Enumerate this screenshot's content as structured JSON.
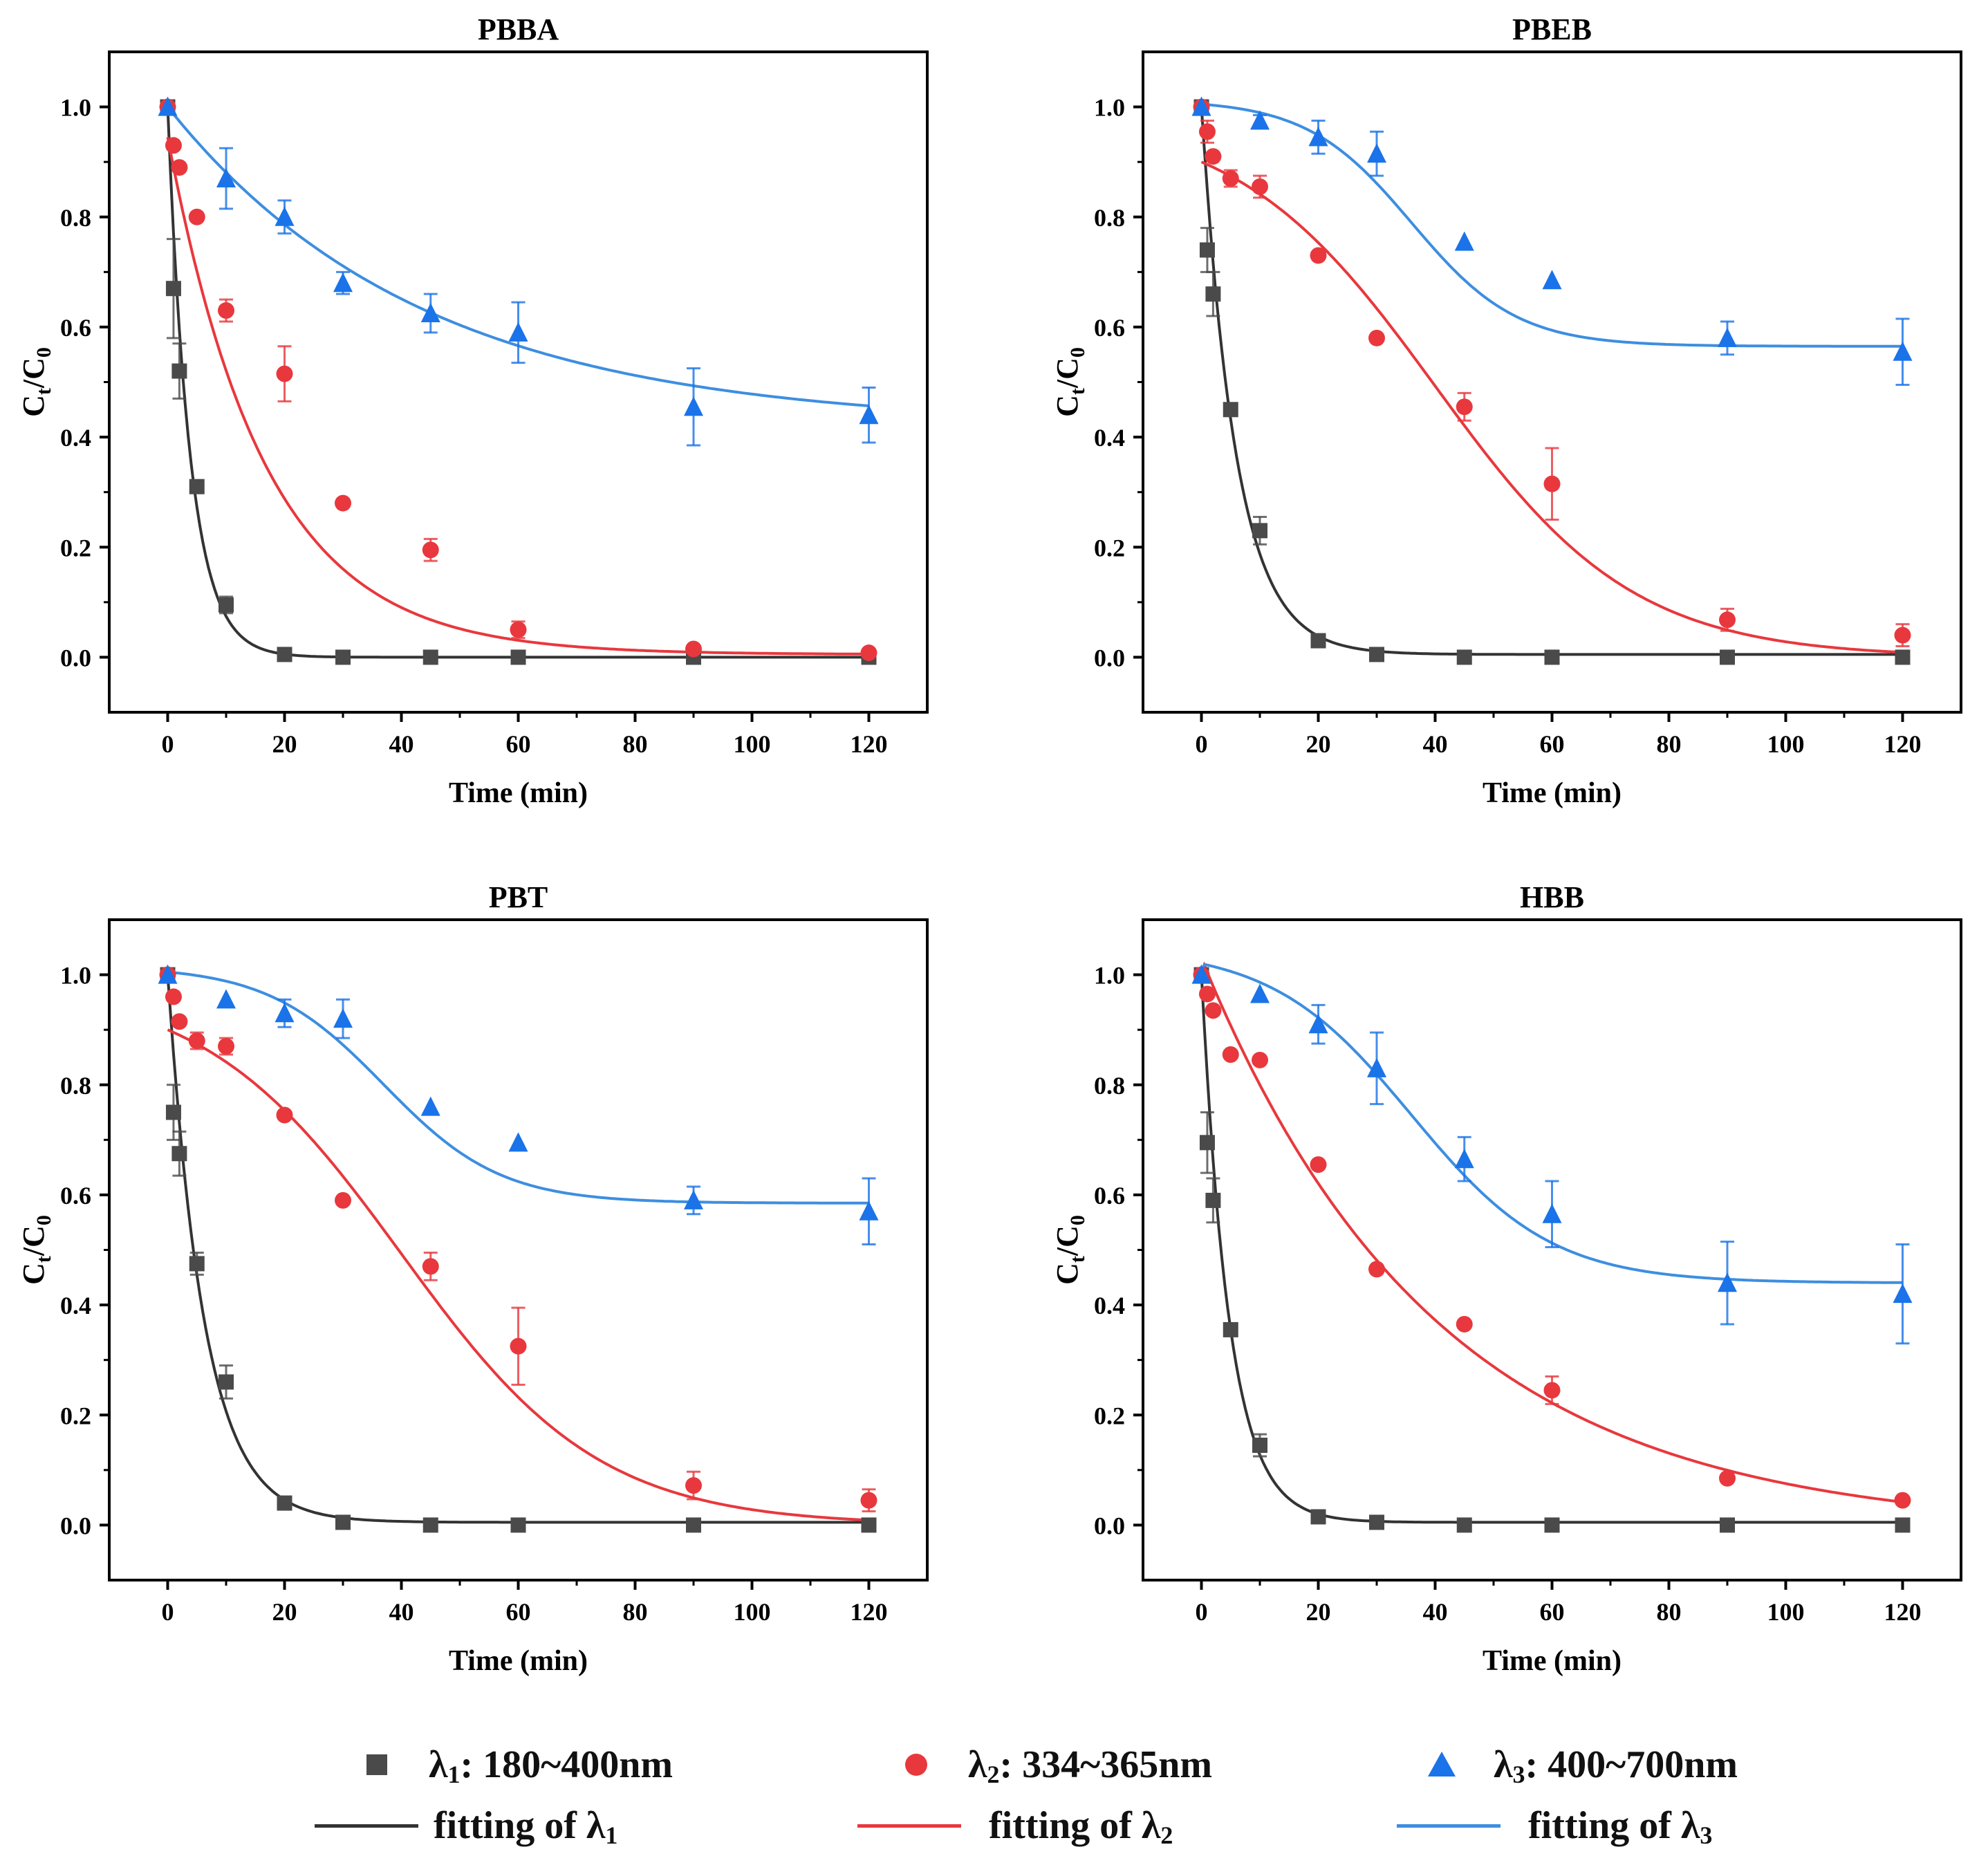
{
  "chart_data": [
    {
      "type": "scatter",
      "title": "PBBA",
      "xlabel": "Time (min)",
      "ylabel": "Ct/C0",
      "xlim": [
        -10,
        130
      ],
      "ylim": [
        -0.1,
        1.1
      ],
      "xticks": [
        "0",
        "20",
        "40",
        "60",
        "80",
        "100",
        "120"
      ],
      "yticks": [
        "0.0",
        "0.2",
        "0.4",
        "0.6",
        "0.8",
        "1.0"
      ],
      "x": [
        0,
        1,
        2,
        5,
        10,
        20,
        30,
        45,
        60,
        90,
        120
      ],
      "series": [
        {
          "name": "λ1: 180~400nm",
          "values": [
            1.0,
            0.67,
            0.52,
            0.31,
            0.095,
            0.005,
            0.0,
            0.0,
            0.0,
            0.0,
            0.0
          ],
          "errors": [
            0,
            0.09,
            0.05,
            0,
            0.015,
            0,
            0,
            0,
            0,
            0,
            0
          ]
        },
        {
          "name": "λ2: 334~365nm",
          "values": [
            1.0,
            0.93,
            0.89,
            0.8,
            0.63,
            0.515,
            0.28,
            0.195,
            0.05,
            0.015,
            0.008
          ],
          "errors": [
            0,
            0,
            0,
            0,
            0.02,
            0.05,
            0,
            0.02,
            0.015,
            0,
            0
          ]
        },
        {
          "name": "λ3: 400~700nm",
          "values": [
            1.0,
            null,
            null,
            null,
            0.87,
            0.8,
            0.68,
            0.625,
            0.59,
            0.455,
            0.44
          ],
          "errors": [
            0,
            0,
            0,
            0,
            0.055,
            0.03,
            0.02,
            0.035,
            0.055,
            0.07,
            0.05
          ]
        }
      ],
      "fits": [
        {
          "name": "fitting of λ1",
          "model": "exp",
          "a": 1.0,
          "k": 0.26,
          "c": 0.0
        },
        {
          "name": "fitting of λ2",
          "model": "exp",
          "a": 0.94,
          "k": 0.06,
          "c": 0.005
        },
        {
          "name": "fitting of λ3",
          "model": "exp",
          "a": 0.58,
          "k": 0.023,
          "c": 0.42
        }
      ]
    },
    {
      "type": "scatter",
      "title": "PBEB",
      "xlabel": "Time (min)",
      "ylabel": "Ct/C0",
      "xlim": [
        -10,
        130
      ],
      "ylim": [
        -0.1,
        1.1
      ],
      "xticks": [
        "0",
        "20",
        "40",
        "60",
        "80",
        "100",
        "120"
      ],
      "yticks": [
        "0.0",
        "0.2",
        "0.4",
        "0.6",
        "0.8",
        "1.0"
      ],
      "x": [
        0,
        1,
        2,
        5,
        10,
        20,
        30,
        45,
        60,
        90,
        120
      ],
      "series": [
        {
          "name": "λ1: 180~400nm",
          "values": [
            1.0,
            0.74,
            0.66,
            0.45,
            0.23,
            0.03,
            0.005,
            0.0,
            0.0,
            0.0,
            0.0
          ],
          "errors": [
            0,
            0.04,
            0.04,
            0,
            0.025,
            0,
            0,
            0,
            0,
            0,
            0
          ]
        },
        {
          "name": "λ2: 334~365nm",
          "values": [
            1.0,
            0.955,
            0.91,
            0.87,
            0.855,
            0.73,
            0.58,
            0.455,
            0.315,
            0.068,
            0.04
          ],
          "errors": [
            0,
            0.02,
            0,
            0.015,
            0.02,
            0,
            0,
            0.025,
            0.065,
            0.02,
            0.02
          ]
        },
        {
          "name": "λ3: 400~700nm",
          "values": [
            1.0,
            null,
            null,
            null,
            0.975,
            0.945,
            0.915,
            0.755,
            0.685,
            0.58,
            0.555
          ],
          "errors": [
            0,
            0,
            0,
            0,
            0.01,
            0.03,
            0.04,
            0,
            0,
            0.03,
            0.06
          ]
        }
      ],
      "fits": [
        {
          "name": "fitting of λ1",
          "model": "exp",
          "a": 1.0,
          "k": 0.17,
          "c": 0.005
        },
        {
          "name": "fitting of λ2",
          "model": "logistic",
          "a": 0.9,
          "t0": 40,
          "s": 17,
          "c": 0.0
        },
        {
          "name": "fitting of λ3",
          "model": "logistic",
          "a": 0.44,
          "t0": 36,
          "s": 9,
          "c": 0.565
        }
      ]
    },
    {
      "type": "scatter",
      "title": "PBT",
      "xlabel": "Time (min)",
      "ylabel": "Ct/C0",
      "xlim": [
        -10,
        130
      ],
      "ylim": [
        -0.1,
        1.1
      ],
      "xticks": [
        "0",
        "20",
        "40",
        "60",
        "80",
        "100",
        "120"
      ],
      "yticks": [
        "0.0",
        "0.2",
        "0.4",
        "0.6",
        "0.8",
        "1.0"
      ],
      "x": [
        0,
        1,
        2,
        5,
        10,
        20,
        30,
        45,
        60,
        90,
        120
      ],
      "series": [
        {
          "name": "λ1: 180~400nm",
          "values": [
            1.0,
            0.75,
            0.675,
            0.475,
            0.26,
            0.04,
            0.005,
            0.0,
            0.0,
            0.0,
            0.0
          ],
          "errors": [
            0,
            0.05,
            0.04,
            0.02,
            0.03,
            0,
            0,
            0,
            0,
            0,
            0
          ]
        },
        {
          "name": "λ2: 334~365nm",
          "values": [
            1.0,
            0.96,
            0.915,
            0.88,
            0.87,
            0.745,
            0.59,
            0.47,
            0.325,
            0.072,
            0.045
          ],
          "errors": [
            0,
            0,
            0,
            0.015,
            0.015,
            0,
            0,
            0.025,
            0.07,
            0.025,
            0.02
          ]
        },
        {
          "name": "λ3: 400~700nm",
          "values": [
            1.0,
            null,
            null,
            null,
            0.955,
            0.93,
            0.92,
            0.76,
            0.695,
            0.59,
            0.57
          ],
          "errors": [
            0,
            0,
            0,
            0,
            0,
            0.025,
            0.035,
            0,
            0,
            0.025,
            0.06
          ]
        }
      ],
      "fits": [
        {
          "name": "fitting of λ1",
          "model": "exp",
          "a": 1.0,
          "k": 0.16,
          "c": 0.005
        },
        {
          "name": "fitting of λ2",
          "model": "logistic",
          "a": 0.9,
          "t0": 40,
          "s": 17,
          "c": 0.0
        },
        {
          "name": "fitting of λ3",
          "model": "logistic",
          "a": 0.42,
          "t0": 37,
          "s": 10,
          "c": 0.585
        }
      ]
    },
    {
      "type": "scatter",
      "title": "HBB",
      "xlabel": "Time (min)",
      "ylabel": "Ct/C0",
      "xlim": [
        -10,
        130
      ],
      "ylim": [
        -0.1,
        1.1
      ],
      "xticks": [
        "0",
        "20",
        "40",
        "60",
        "80",
        "100",
        "120"
      ],
      "yticks": [
        "0.0",
        "0.2",
        "0.4",
        "0.6",
        "0.8",
        "1.0"
      ],
      "x": [
        0,
        1,
        2,
        5,
        10,
        20,
        30,
        45,
        60,
        90,
        120
      ],
      "series": [
        {
          "name": "λ1: 180~400nm",
          "values": [
            1.0,
            0.695,
            0.59,
            0.355,
            0.145,
            0.015,
            0.005,
            0.0,
            0.0,
            0.0,
            0.0
          ],
          "errors": [
            0,
            0.055,
            0.04,
            0,
            0.02,
            0,
            0,
            0,
            0,
            0,
            0
          ]
        },
        {
          "name": "λ2: 334~365nm",
          "values": [
            1.0,
            0.965,
            0.935,
            0.855,
            0.845,
            0.655,
            0.465,
            0.365,
            0.245,
            0.085,
            0.045
          ],
          "errors": [
            0,
            0,
            0,
            0,
            0,
            0,
            0,
            0,
            0.025,
            0,
            0
          ]
        },
        {
          "name": "λ3: 400~700nm",
          "values": [
            1.0,
            null,
            null,
            null,
            0.965,
            0.91,
            0.83,
            0.665,
            0.565,
            0.44,
            0.42
          ],
          "errors": [
            0,
            0,
            0,
            0,
            0,
            0.035,
            0.065,
            0.04,
            0.06,
            0.075,
            0.09
          ]
        }
      ],
      "fits": [
        {
          "name": "fitting of λ1",
          "model": "exp",
          "a": 1.0,
          "k": 0.21,
          "c": 0.005
        },
        {
          "name": "fitting of λ2",
          "model": "exp2",
          "a": 1.04,
          "k": 0.025,
          "c": -0.01
        },
        {
          "name": "fitting of λ3",
          "model": "logistic",
          "a": 0.58,
          "t0": 36,
          "s": 12,
          "c": 0.44
        }
      ]
    }
  ],
  "legend": {
    "items": [
      {
        "greek": "λ",
        "sub": "1",
        "text": ": 180~400nm"
      },
      {
        "greek": "λ",
        "sub": "2",
        "text": ": 334~365nm"
      },
      {
        "greek": "λ",
        "sub": "3",
        "text": ": 400~700nm"
      }
    ],
    "fits": [
      {
        "text": "fitting of  λ",
        "sub": "1"
      },
      {
        "text": "fitting of  λ",
        "sub": "2"
      },
      {
        "text": "fitting of λ",
        "sub": "3"
      }
    ]
  },
  "colors": {
    "l1": "#4a4a4a",
    "l2": "#e8383d",
    "l3": "#1a73e8",
    "fit1": "#333333",
    "fit2": "#e8383d",
    "fit3": "#3d8ee0"
  }
}
